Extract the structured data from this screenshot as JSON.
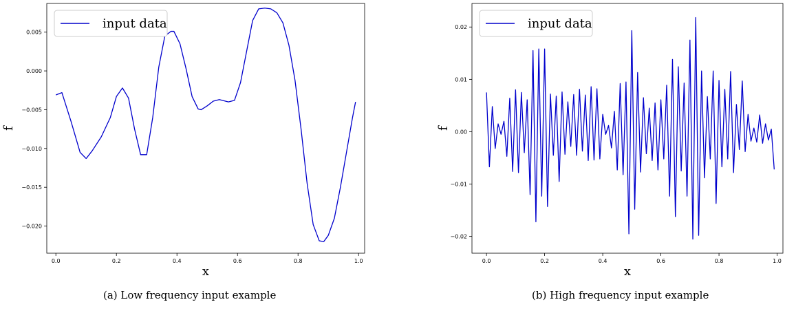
{
  "chart_data": [
    {
      "type": "line",
      "caption": "(a) Low frequency input example",
      "xlabel": "x",
      "ylabel": "f",
      "xlim": [
        -0.03,
        1.02
      ],
      "ylim": [
        -0.0235,
        0.0087
      ],
      "xticks": [
        0.0,
        0.2,
        0.4,
        0.6,
        0.8,
        1.0
      ],
      "xtick_labels": [
        "0.0",
        "0.2",
        "0.4",
        "0.6",
        "0.8",
        "1.0"
      ],
      "yticks": [
        0.005,
        0.0,
        -0.005,
        -0.01,
        -0.015,
        -0.02
      ],
      "ytick_labels": [
        "0.005",
        "0.000",
        "−0.005",
        "−0.010",
        "−0.015",
        "−0.020"
      ],
      "legend": "upper-left",
      "series": [
        {
          "name": "input data",
          "color": "#0000cc",
          "x": [
            0.0,
            0.02,
            0.05,
            0.08,
            0.1,
            0.12,
            0.15,
            0.18,
            0.2,
            0.22,
            0.24,
            0.26,
            0.28,
            0.3,
            0.32,
            0.34,
            0.36,
            0.38,
            0.39,
            0.41,
            0.43,
            0.45,
            0.47,
            0.48,
            0.5,
            0.52,
            0.54,
            0.57,
            0.59,
            0.61,
            0.63,
            0.65,
            0.67,
            0.69,
            0.71,
            0.73,
            0.75,
            0.77,
            0.79,
            0.81,
            0.83,
            0.85,
            0.87,
            0.885,
            0.9,
            0.92,
            0.94,
            0.96,
            0.98,
            0.99
          ],
          "y": [
            -0.0031,
            -0.0028,
            -0.0065,
            -0.0105,
            -0.0113,
            -0.0103,
            -0.0085,
            -0.006,
            -0.0033,
            -0.0022,
            -0.0035,
            -0.0075,
            -0.0108,
            -0.0108,
            -0.006,
            0.0005,
            0.0045,
            0.0051,
            0.0051,
            0.0035,
            0.0003,
            -0.0033,
            -0.0049,
            -0.005,
            -0.0045,
            -0.0039,
            -0.0037,
            -0.004,
            -0.0038,
            -0.0015,
            0.0025,
            0.0065,
            0.008,
            0.0081,
            0.008,
            0.0075,
            0.0062,
            0.0033,
            -0.0012,
            -0.0075,
            -0.0145,
            -0.0198,
            -0.0219,
            -0.022,
            -0.0212,
            -0.019,
            -0.015,
            -0.0105,
            -0.006,
            -0.004
          ]
        }
      ]
    },
    {
      "type": "line",
      "caption": "(b) High frequency input example",
      "xlabel": "x",
      "ylabel": "f",
      "xlim": [
        -0.05,
        1.02
      ],
      "ylim": [
        -0.0232,
        0.0245
      ],
      "xticks": [
        0.0,
        0.2,
        0.4,
        0.6,
        0.8,
        1.0
      ],
      "xtick_labels": [
        "0.0",
        "0.2",
        "0.4",
        "0.6",
        "0.8",
        "1.0"
      ],
      "yticks": [
        0.02,
        0.01,
        0.0,
        -0.01,
        -0.02
      ],
      "ytick_labels": [
        "0.02",
        "0.01",
        "0.00",
        "−0.01",
        "−0.02"
      ],
      "legend": "upper-left",
      "series": [
        {
          "name": "input data",
          "color": "#0000cc",
          "x": [
            0.0,
            0.01,
            0.02,
            0.03,
            0.04,
            0.05,
            0.06,
            0.07,
            0.08,
            0.09,
            0.1,
            0.11,
            0.12,
            0.13,
            0.14,
            0.15,
            0.16,
            0.17,
            0.18,
            0.19,
            0.2,
            0.21,
            0.22,
            0.23,
            0.24,
            0.25,
            0.26,
            0.27,
            0.28,
            0.29,
            0.3,
            0.31,
            0.32,
            0.33,
            0.34,
            0.35,
            0.36,
            0.37,
            0.38,
            0.39,
            0.4,
            0.41,
            0.42,
            0.43,
            0.44,
            0.45,
            0.46,
            0.47,
            0.48,
            0.49,
            0.5,
            0.51,
            0.52,
            0.53,
            0.54,
            0.55,
            0.56,
            0.57,
            0.58,
            0.59,
            0.6,
            0.61,
            0.62,
            0.63,
            0.64,
            0.65,
            0.66,
            0.67,
            0.68,
            0.69,
            0.7,
            0.71,
            0.72,
            0.73,
            0.74,
            0.75,
            0.76,
            0.77,
            0.78,
            0.79,
            0.8,
            0.81,
            0.82,
            0.83,
            0.84,
            0.85,
            0.86,
            0.87,
            0.88,
            0.89,
            0.9,
            0.91,
            0.92,
            0.93,
            0.94,
            0.95,
            0.96,
            0.97,
            0.98,
            0.99
          ],
          "y": [
            0.0075,
            -0.0067,
            0.0048,
            -0.0032,
            0.0015,
            -0.0005,
            0.002,
            -0.0047,
            0.0064,
            -0.0076,
            0.008,
            -0.0078,
            0.0075,
            -0.004,
            0.0061,
            -0.012,
            0.0155,
            -0.0172,
            0.0158,
            -0.0123,
            0.0158,
            -0.0143,
            0.0072,
            -0.0045,
            0.0068,
            -0.0095,
            0.0076,
            -0.0043,
            0.0057,
            -0.0028,
            0.0071,
            -0.0045,
            0.0081,
            -0.0037,
            0.007,
            -0.0055,
            0.0086,
            -0.0054,
            0.0082,
            -0.0052,
            0.0033,
            -0.0005,
            0.0012,
            -0.0031,
            0.0039,
            -0.0073,
            0.0092,
            -0.0082,
            0.0095,
            -0.0195,
            0.0193,
            -0.0148,
            0.0113,
            -0.0077,
            0.0065,
            -0.0042,
            0.0045,
            -0.0055,
            0.0055,
            -0.0073,
            0.0061,
            -0.0052,
            0.0089,
            -0.0123,
            0.0138,
            -0.0162,
            0.0124,
            -0.0075,
            0.0093,
            -0.0123,
            0.0175,
            -0.0205,
            0.0218,
            -0.0198,
            0.0116,
            -0.0088,
            0.0067,
            -0.0052,
            0.0116,
            -0.0137,
            0.0098,
            -0.0067,
            0.0081,
            -0.0052,
            0.0115,
            -0.0078,
            0.0052,
            -0.0034,
            0.0097,
            -0.0038,
            0.0033,
            -0.0018,
            0.0007,
            -0.002,
            0.0032,
            -0.0022,
            0.0015,
            -0.0016,
            0.0005,
            -0.0072
          ]
        }
      ]
    }
  ]
}
